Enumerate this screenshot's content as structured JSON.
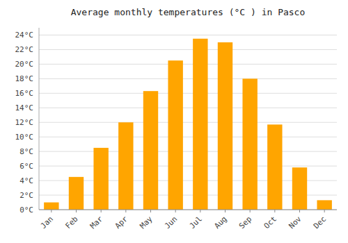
{
  "chart_data": {
    "type": "bar",
    "title": "Average monthly temperatures (°C ) in Pasco",
    "categories": [
      "Jan",
      "Feb",
      "Mar",
      "Apr",
      "May",
      "Jun",
      "Jul",
      "Aug",
      "Sep",
      "Oct",
      "Nov",
      "Dec"
    ],
    "values": [
      1.0,
      4.5,
      8.5,
      12.0,
      16.3,
      20.5,
      23.5,
      23.0,
      18.0,
      11.7,
      5.8,
      1.3
    ],
    "color": "#FFA500",
    "ylim": [
      0,
      25
    ],
    "yticks": [
      {
        "value": 0,
        "label": "0°C"
      },
      {
        "value": 2,
        "label": "2°C"
      },
      {
        "value": 4,
        "label": "4°C"
      },
      {
        "value": 6,
        "label": "6°C"
      },
      {
        "value": 8,
        "label": "8°C"
      },
      {
        "value": 10,
        "label": "10°C"
      },
      {
        "value": 12,
        "label": "12°C"
      },
      {
        "value": 14,
        "label": "14°C"
      },
      {
        "value": 16,
        "label": "16°C"
      },
      {
        "value": 18,
        "label": "18°C"
      },
      {
        "value": 20,
        "label": "20°C"
      },
      {
        "value": 22,
        "label": "22°C"
      },
      {
        "value": 24,
        "label": "24°C"
      }
    ],
    "grid": true
  }
}
